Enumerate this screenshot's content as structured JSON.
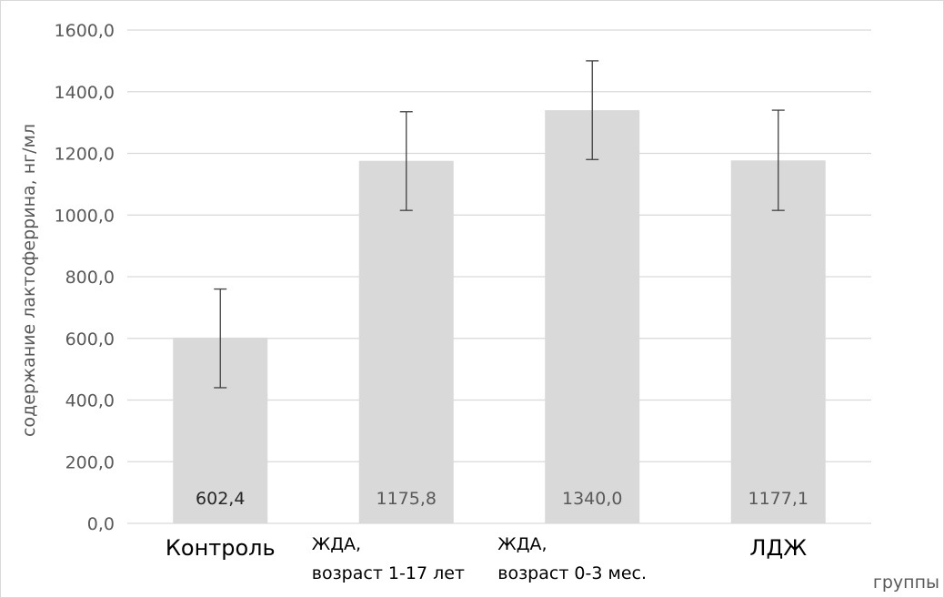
{
  "chart_data": {
    "type": "bar",
    "categories": [
      [
        "Контроль"
      ],
      [
        "ЖДА,",
        "возраст 1-17 лет"
      ],
      [
        "ЖДА,",
        "возраст 0-3 мес."
      ],
      [
        "ЛДЖ"
      ]
    ],
    "values": [
      602.4,
      1175.8,
      1340.0,
      1177.1
    ],
    "value_labels": [
      "602,4",
      "1175,8",
      "1340,0",
      "1177,1"
    ],
    "error_bars": [
      {
        "low": 440,
        "high": 760
      },
      {
        "low": 1015,
        "high": 1335
      },
      {
        "low": 1180,
        "high": 1500
      },
      {
        "low": 1015,
        "high": 1340
      }
    ],
    "ylabel": "содержание лактоферрина, нг/мл",
    "xlabel": "группы",
    "ylim": [
      0,
      1600
    ],
    "yticks": [
      0,
      200,
      400,
      600,
      800,
      1000,
      1200,
      1400,
      1600
    ],
    "ytick_labels": [
      "0,0",
      "200,0",
      "400,0",
      "600,0",
      "800,0",
      "1000,0",
      "1200,0",
      "1400,0",
      "1600,0"
    ],
    "grid": true,
    "bar_color": "#d9d9d9",
    "gridline_color": "#d9d9d9",
    "errorbar_color": "#404040"
  }
}
